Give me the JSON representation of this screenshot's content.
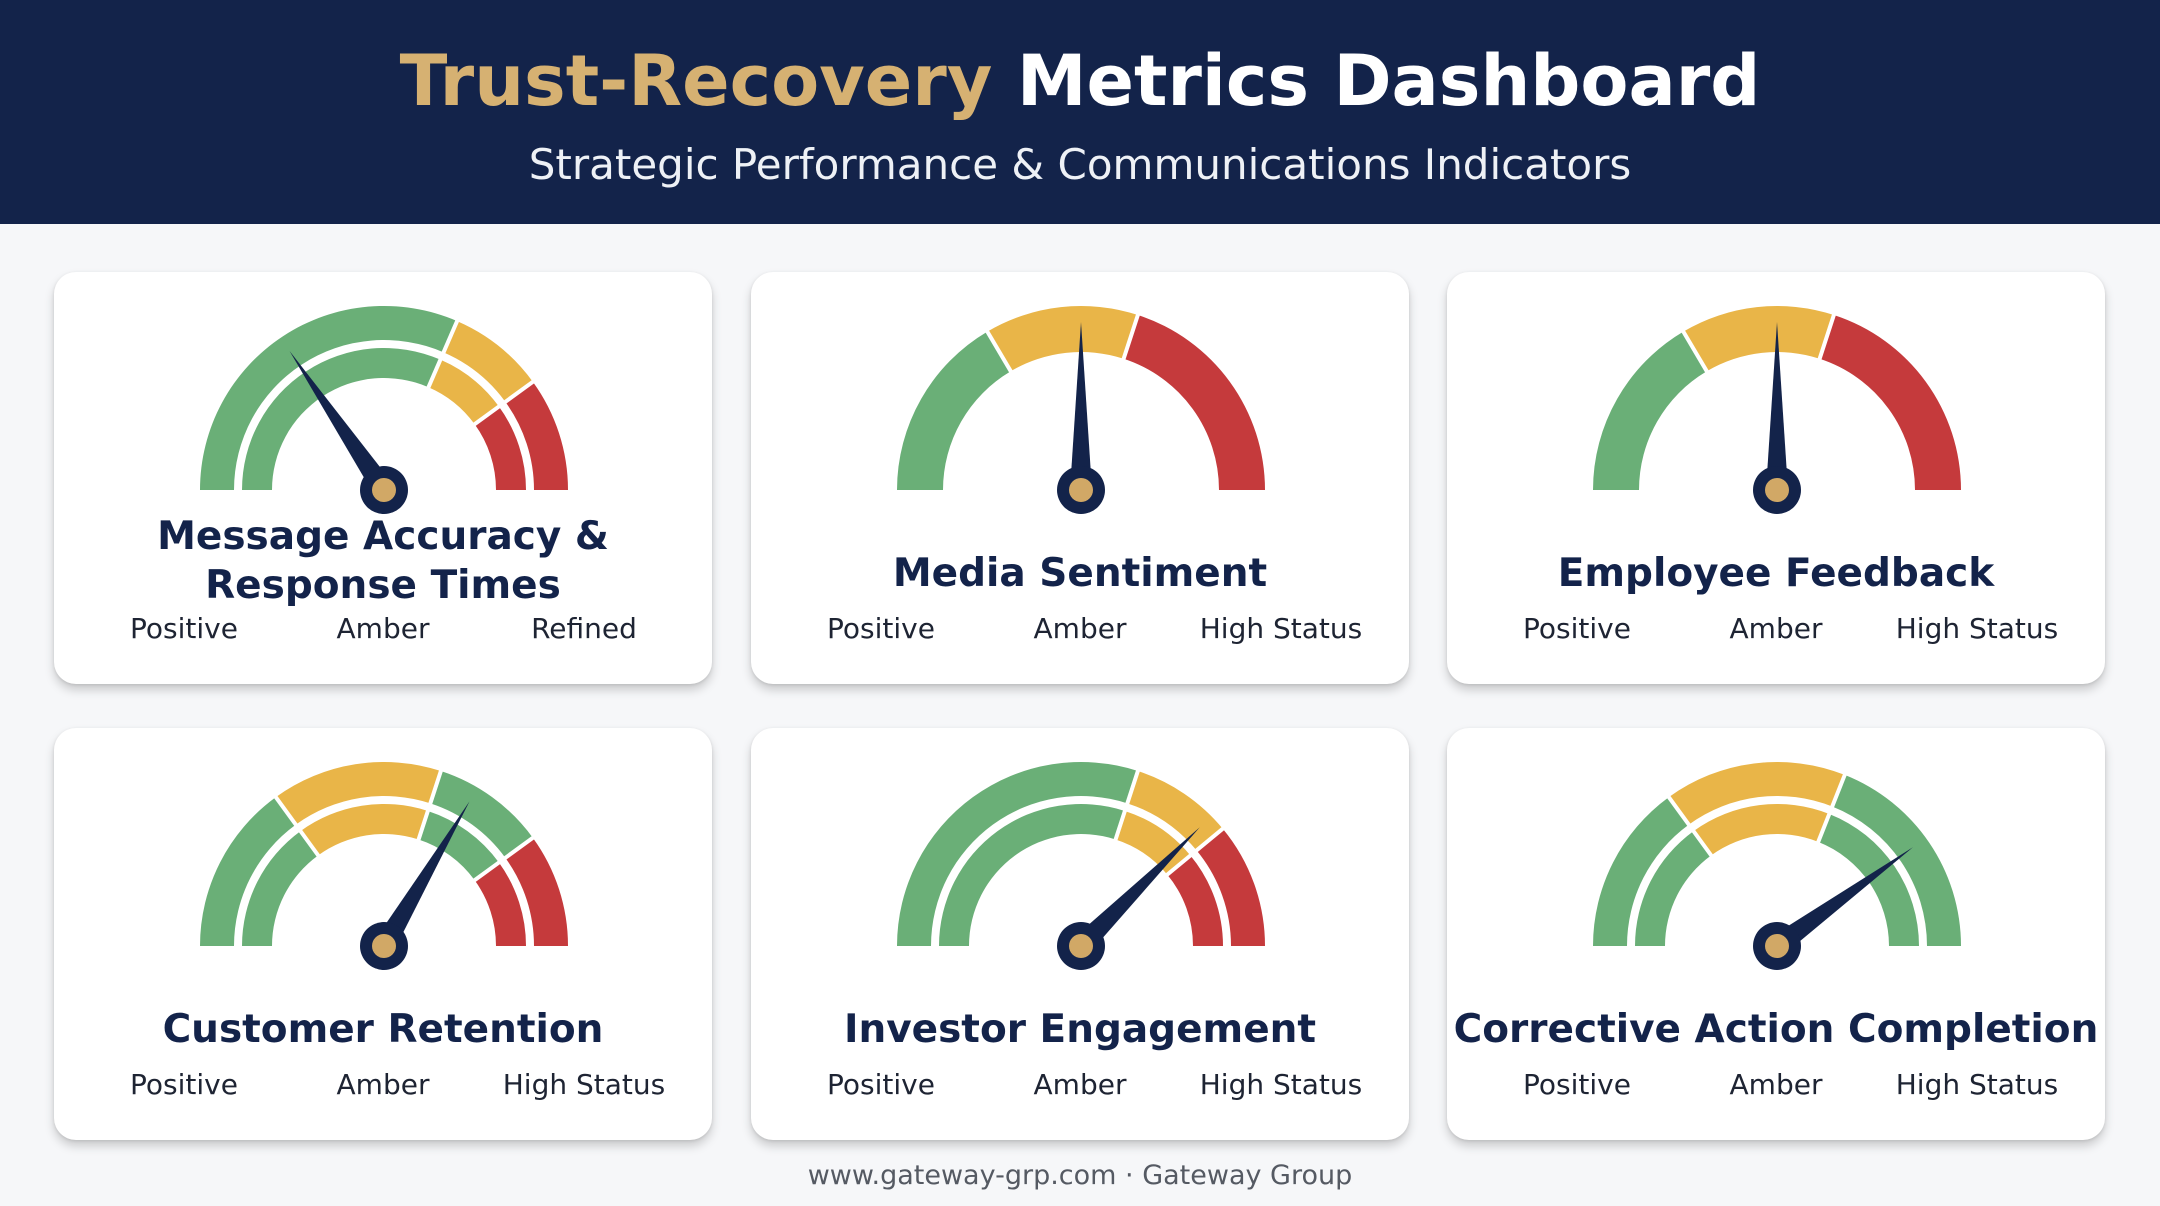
{
  "header": {
    "title_accent": "Trust-Recovery",
    "title_rest": "Metrics Dashboard",
    "subtitle": "Strategic Performance & Communications Indicators"
  },
  "colors": {
    "header_bg": "#13234a",
    "accent_gold": "#d6b172",
    "green": "#6aaf77",
    "amber": "#e9b548",
    "red": "#c53a3c",
    "needle": "#13234a",
    "hub": "#d1a866"
  },
  "gauges": [
    {
      "title_lines": [
        "Message Accuracy &",
        "Response Times"
      ],
      "labels": [
        "Positive",
        "Amber",
        "Refined"
      ],
      "style": "double",
      "segments": [
        {
          "color": "green",
          "from": 0,
          "to": 0.63
        },
        {
          "color": "amber",
          "from": 0.63,
          "to": 0.8
        },
        {
          "color": "red",
          "from": 0.8,
          "to": 1
        }
      ],
      "needle": 0.31
    },
    {
      "title_lines": [
        "Media Sentiment"
      ],
      "labels": [
        "Positive",
        "Amber",
        "High Status"
      ],
      "style": "single",
      "segments": [
        {
          "color": "green",
          "from": 0,
          "to": 0.33
        },
        {
          "color": "amber",
          "from": 0.33,
          "to": 0.6
        },
        {
          "color": "red",
          "from": 0.6,
          "to": 1
        }
      ],
      "needle": 0.5
    },
    {
      "title_lines": [
        "Employee Feedback"
      ],
      "labels": [
        "Positive",
        "Amber",
        "High Status"
      ],
      "style": "single",
      "segments": [
        {
          "color": "green",
          "from": 0,
          "to": 0.33
        },
        {
          "color": "amber",
          "from": 0.33,
          "to": 0.6
        },
        {
          "color": "red",
          "from": 0.6,
          "to": 1
        }
      ],
      "needle": 0.5
    },
    {
      "title_lines": [
        "Customer Retention"
      ],
      "labels": [
        "Positive",
        "Amber",
        "High Status"
      ],
      "style": "double",
      "segments": [
        {
          "color": "green",
          "from": 0,
          "to": 0.3
        },
        {
          "color": "amber",
          "from": 0.3,
          "to": 0.6
        },
        {
          "color": "green",
          "from": 0.6,
          "to": 0.8
        },
        {
          "color": "red",
          "from": 0.8,
          "to": 1
        }
      ],
      "needle": 0.67
    },
    {
      "title_lines": [
        "Investor Engagement"
      ],
      "labels": [
        "Positive",
        "Amber",
        "High Status"
      ],
      "style": "double",
      "segments": [
        {
          "color": "green",
          "from": 0,
          "to": 0.6
        },
        {
          "color": "amber",
          "from": 0.6,
          "to": 0.78
        },
        {
          "color": "red",
          "from": 0.78,
          "to": 1
        }
      ],
      "needle": 0.75
    },
    {
      "title_lines": [
        "Corrective Action Completion"
      ],
      "labels": [
        "Positive",
        "Amber",
        "High Status"
      ],
      "style": "double",
      "segments": [
        {
          "color": "green",
          "from": 0,
          "to": 0.3
        },
        {
          "color": "amber",
          "from": 0.3,
          "to": 0.62
        },
        {
          "color": "green",
          "from": 0.62,
          "to": 1
        }
      ],
      "needle": 0.8
    }
  ],
  "footer": "www.gateway-grp.com · Gateway Group"
}
